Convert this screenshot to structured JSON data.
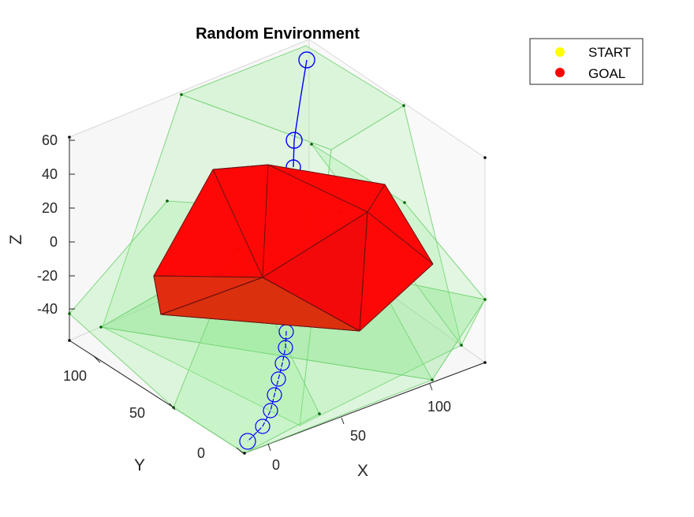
{
  "chart_data": {
    "type": "3d-scatter-line",
    "title": "Random Environment",
    "xlabel": "X",
    "ylabel": "Y",
    "zlabel": "Z",
    "x_ticks": [
      "0",
      "50",
      "100"
    ],
    "y_ticks": [
      "0",
      "50",
      "100"
    ],
    "z_ticks": [
      "60",
      "40",
      "20",
      "0",
      "-20",
      "-40"
    ],
    "legend": {
      "placement": "top-right",
      "entries": [
        {
          "label": "START",
          "color": "#FFFF00"
        },
        {
          "label": "GOAL",
          "color": "#FF0000"
        }
      ]
    },
    "colors": {
      "path": "#0000FF",
      "obstacle": "#FF0000",
      "environment": "#90EE90",
      "box": "#C8C8C8"
    }
  }
}
